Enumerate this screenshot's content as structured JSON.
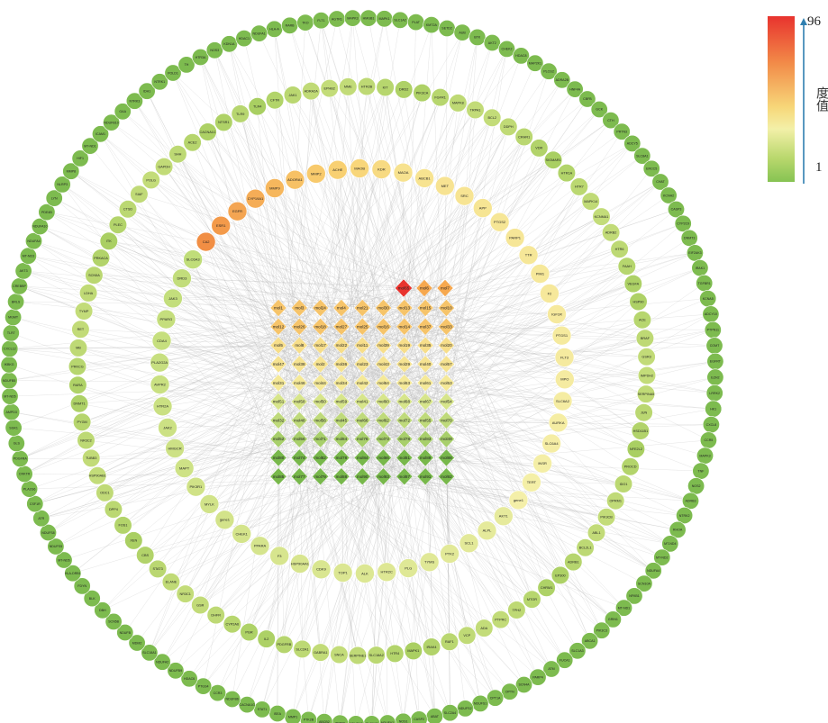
{
  "legend": {
    "title": "度值",
    "max": "96",
    "min": "1",
    "colors": [
      "#e8332e",
      "#f28a48",
      "#f7d779",
      "#f3f0a8",
      "#86c353"
    ]
  },
  "core_nodes": [
    {
      "label": "mol65",
      "shape": "diamond",
      "color": "#e8332e"
    },
    {
      "label": "mol6",
      "color": "#f6a84f"
    },
    {
      "label": "mol7",
      "color": "#f6a84f"
    },
    {
      "label": "mol1"
    },
    {
      "label": "mol3"
    },
    {
      "label": "mol24"
    },
    {
      "label": "mol4"
    },
    {
      "label": "mol21"
    },
    {
      "label": "mol30"
    },
    {
      "label": "mol13"
    },
    {
      "label": "mol15"
    },
    {
      "label": "mol10"
    },
    {
      "label": "mol12"
    },
    {
      "label": "mol26"
    },
    {
      "label": "mol18"
    },
    {
      "label": "mol27"
    },
    {
      "label": "mol25"
    },
    {
      "label": "mol16"
    },
    {
      "label": "mol14"
    },
    {
      "label": "mol37"
    },
    {
      "label": "mol33"
    },
    {
      "label": "mol5"
    },
    {
      "label": "mol8"
    },
    {
      "label": "mol17"
    },
    {
      "label": "mol22"
    },
    {
      "label": "mol11"
    },
    {
      "label": "mol39"
    },
    {
      "label": "mol19"
    },
    {
      "label": "mol35"
    },
    {
      "label": "mol20"
    },
    {
      "label": "mol47"
    },
    {
      "label": "mol38"
    },
    {
      "label": "mol2"
    },
    {
      "label": "mol36"
    },
    {
      "label": "mol23"
    },
    {
      "label": "mol43"
    },
    {
      "label": "mol29"
    },
    {
      "label": "mol40"
    },
    {
      "label": "mol57"
    },
    {
      "label": "mol31"
    },
    {
      "label": "mol46"
    },
    {
      "label": "mol44"
    },
    {
      "label": "mol34"
    },
    {
      "label": "mol42"
    },
    {
      "label": "mol64"
    },
    {
      "label": "mol63"
    },
    {
      "label": "mol61"
    },
    {
      "label": "mol53"
    },
    {
      "label": "mol51"
    },
    {
      "label": "mol58"
    },
    {
      "label": "mol50"
    },
    {
      "label": "mol59"
    },
    {
      "label": "mol41"
    },
    {
      "label": "mol60"
    },
    {
      "label": "mol68"
    },
    {
      "label": "mol67"
    },
    {
      "label": "mol54"
    },
    {
      "label": "mol32"
    },
    {
      "label": "mol48"
    },
    {
      "label": "mol56"
    },
    {
      "label": "mol45"
    },
    {
      "label": "mol66"
    },
    {
      "label": "mol62"
    },
    {
      "label": "mol72"
    },
    {
      "label": "mol55"
    },
    {
      "label": "mol70"
    },
    {
      "label": "mol52"
    },
    {
      "label": "mol56"
    },
    {
      "label": "mol71"
    },
    {
      "label": "mol84"
    },
    {
      "label": "mol76"
    },
    {
      "label": "mol73"
    },
    {
      "label": "mol78"
    },
    {
      "label": "mol83"
    },
    {
      "label": "mol49"
    },
    {
      "label": "mol80"
    },
    {
      "label": "mol74"
    },
    {
      "label": "mol82"
    },
    {
      "label": "mol78"
    },
    {
      "label": "mol84"
    },
    {
      "label": "mol86"
    },
    {
      "label": "mol81"
    },
    {
      "label": "mol89"
    },
    {
      "label": "mol88"
    },
    {
      "label": "mol85"
    },
    {
      "label": "mol77"
    },
    {
      "label": "mol79"
    },
    {
      "label": "mol88"
    },
    {
      "label": "mol90"
    },
    {
      "label": "mol93"
    },
    {
      "label": "mol87"
    },
    {
      "label": "mol91"
    },
    {
      "label": "mol92"
    }
  ],
  "ring1": [
    "CA2",
    "ESR1",
    "EGFR",
    "CYP19A1",
    "MMP9",
    "ADORA1",
    "MMP2",
    "ACHE",
    "MAOB",
    "KDR",
    "MAOA",
    "ABCB1",
    "MET",
    "SRC",
    "APP",
    "PTGS2",
    "PARP1",
    "TTR",
    "PIM1",
    "F2",
    "IGF1R",
    "PTGS1",
    "FLT3",
    "MPO",
    "SLC6A2",
    "AURKA",
    "SLC6A4",
    "INSR",
    "TERT",
    "gene1",
    "AKT1",
    "ALPL",
    "SCL1",
    "PTK2",
    "TYMS",
    "PLG",
    "HTR2C",
    "ALK",
    "TOP1",
    "CDK9",
    "HSP90AA1",
    "F3",
    "PPARA",
    "CHEK1",
    "gene1",
    "MYLK",
    "PIK3R1",
    "MAPT",
    "HMGCR",
    "JAK2",
    "HTR2A",
    "AVPR2",
    "PLA2G2A",
    "CDA4",
    "PPARG",
    "JAK3",
    "DRD3",
    "SLC6A3"
  ],
  "ring2": [
    "TLR4",
    "CFTR",
    "JAK1",
    "ADRA2A",
    "EPHB2",
    "MME",
    "HTR2B",
    "KIT",
    "DRD2",
    "PIK3CA",
    "FGFR1",
    "MAPK8",
    "TRPA1",
    "BCL2",
    "DDPH",
    "CRHR1",
    "VDR",
    "SIGMAR1",
    "HTR1A",
    "HTR7",
    "MAPK14",
    "KCNMA1",
    "ADRB2",
    "HTR6",
    "FAAH",
    "VEGFA",
    "HSP90",
    "ACE",
    "BRAF",
    "GSR3",
    "IMPDH2",
    "SERPINA5",
    "JUN",
    "HSD11B1",
    "NFE2L2",
    "PROCD",
    "IDO1",
    "OPRM1",
    "PIK3CB",
    "ABL1",
    "BCL2L1",
    "ADRB1",
    "EP300",
    "CHRM1",
    "MTOR",
    "TPH2",
    "PTPRC",
    "ADA",
    "VCP",
    "RAF1",
    "IRAK4",
    "MAPK1",
    "HTR4",
    "SLC18A2",
    "SERPINE1",
    "SNCA",
    "GABRA1",
    "SLC2A1",
    "PDGFRB",
    "IL2",
    "PGR",
    "CYP2A6",
    "DHFR",
    "GSR",
    "NR3C1",
    "ELANE",
    "STAT3",
    "CBS",
    "XEN",
    "FOS1",
    "DPP4",
    "ODC1",
    "HSP90AB1",
    "TUBB3",
    "NR3C2",
    "PYGM",
    "DNMT1",
    "RARA",
    "PRKCG",
    "MB",
    "RET",
    "TYMP",
    "LDHA",
    "SCN5A",
    "PRKACA",
    "ITK",
    "PLEC",
    "CTSD",
    "SIAF",
    "POLG",
    "GAPDH",
    "SHH",
    "ACE2",
    "CACNA1C",
    "NTSR1",
    "TLR9"
  ],
  "ring3": [
    "HLA-A",
    "RARB",
    "TKO",
    "FLT1",
    "AGTR1",
    "MAPK3",
    "HMGB1",
    "MAPK1",
    "SLC1A2",
    "PLAT",
    "KMT2A",
    "SETD2",
    "AUB",
    "BTK",
    "AKT2",
    "CHEK2",
    "HDAC8",
    "MAP2K1",
    "PLCG2",
    "ADRA2B",
    "HNF4A",
    "CBFB",
    "GCK",
    "CTH",
    "PRTN3",
    "ADCY5",
    "SLC8A1",
    "ERCC5",
    "CHAT",
    "KCNH2",
    "CASP3",
    "CYP2C9",
    "DNMT3",
    "EIF2AK3",
    "IRAK1",
    "TGFBR1",
    "KCNA5",
    "ADCY10",
    "PTPN11",
    "COMT",
    "EGFRT",
    "EZH2",
    "LRRK2",
    "HK1",
    "CXCL8",
    "CCR5",
    "MAPK3",
    "TNF",
    "NOS2",
    "ADRB3",
    "NTRK2",
    "RHOA",
    "MT-ND4",
    "MT-ND2",
    "NDUFA4",
    "SCN10A",
    "NFKB1",
    "MT-ND1",
    "GRIN1",
    "PIK3C3",
    "ABCA1",
    "SLC1A3",
    "FUCA1",
    "ATM",
    "PARP4",
    "SCN4A",
    "OPTN",
    "CPT1A",
    "NDUFS1",
    "NDUFS2",
    "SLC2A4",
    "ABAT",
    "CASP2",
    "NOS1",
    "NDUFV1",
    "SLC6A7",
    "NDUFA8",
    "TRIM3",
    "ABCB2",
    "PTK2B",
    "MMP1",
    "ISEA",
    "STAT1",
    "CACNA1G",
    "NDUFB6",
    "CCR3",
    "PTGS4",
    "HDAC6",
    "NDUFB9",
    "NDUFA2",
    "SLC18A1",
    "MDM2",
    "NDUFB",
    "SCN5B",
    "DBH",
    "BLK",
    "FDYN",
    "HLA-DRB1",
    "MT-ND5",
    "NDUFS5",
    "NDUFS8",
    "ATR",
    "CSF1R",
    "PLA2G6",
    "CRKTR",
    "PDGFRA",
    "GLS",
    "SGK1",
    "AMPD3",
    "MT-ND5",
    "NDUFB5",
    "IKBKG",
    "CXCL12",
    "TLR7",
    "MGMT",
    "BRLS",
    "CREBBP",
    "AKT3",
    "MT-ND3",
    "NDUFA4",
    "NDUFA10",
    "PDE4B",
    "LYN",
    "NLRP3",
    "MMP8",
    "HIF1",
    "MT-ND1",
    "ICAM1",
    "NDUFB10",
    "GAA",
    "NTRK3",
    "IDH1",
    "NTRK1",
    "POLD1",
    "TH",
    "HTR3A",
    "NOS3",
    "KDN1A",
    "HDAC1",
    "NDUFA1"
  ]
}
